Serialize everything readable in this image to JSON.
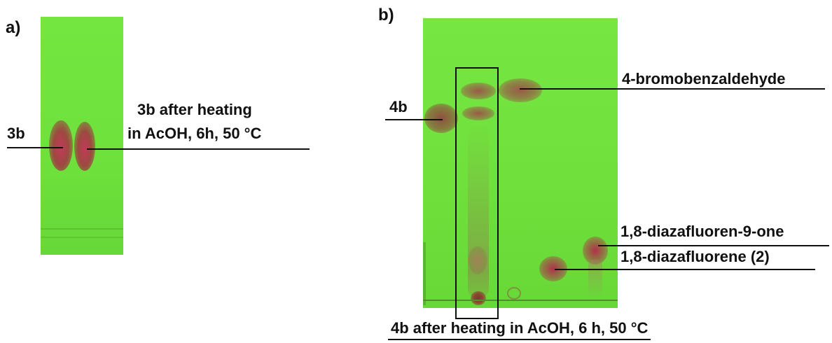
{
  "panel_a": {
    "tag": "a)",
    "label_3b": "3b",
    "label_heated_line1": "3b after heating",
    "label_heated_line2": "in AcOH, 6h, 50 °C"
  },
  "panel_b": {
    "tag": "b)",
    "label_4b": "4b",
    "label_aldehyde": "4-bromobenzaldehyde",
    "label_diazafluorenone": "1,8-diazafluoren-9-one",
    "label_diazafluorene": "1,8-diazafluorene (2)",
    "caption": "4b after heating in AcOH, 6 h, 50 °C"
  },
  "colors": {
    "plate_green": "#6fe43a",
    "spot_brown": "#8b4a3a",
    "spot_red": "#b0304a"
  }
}
